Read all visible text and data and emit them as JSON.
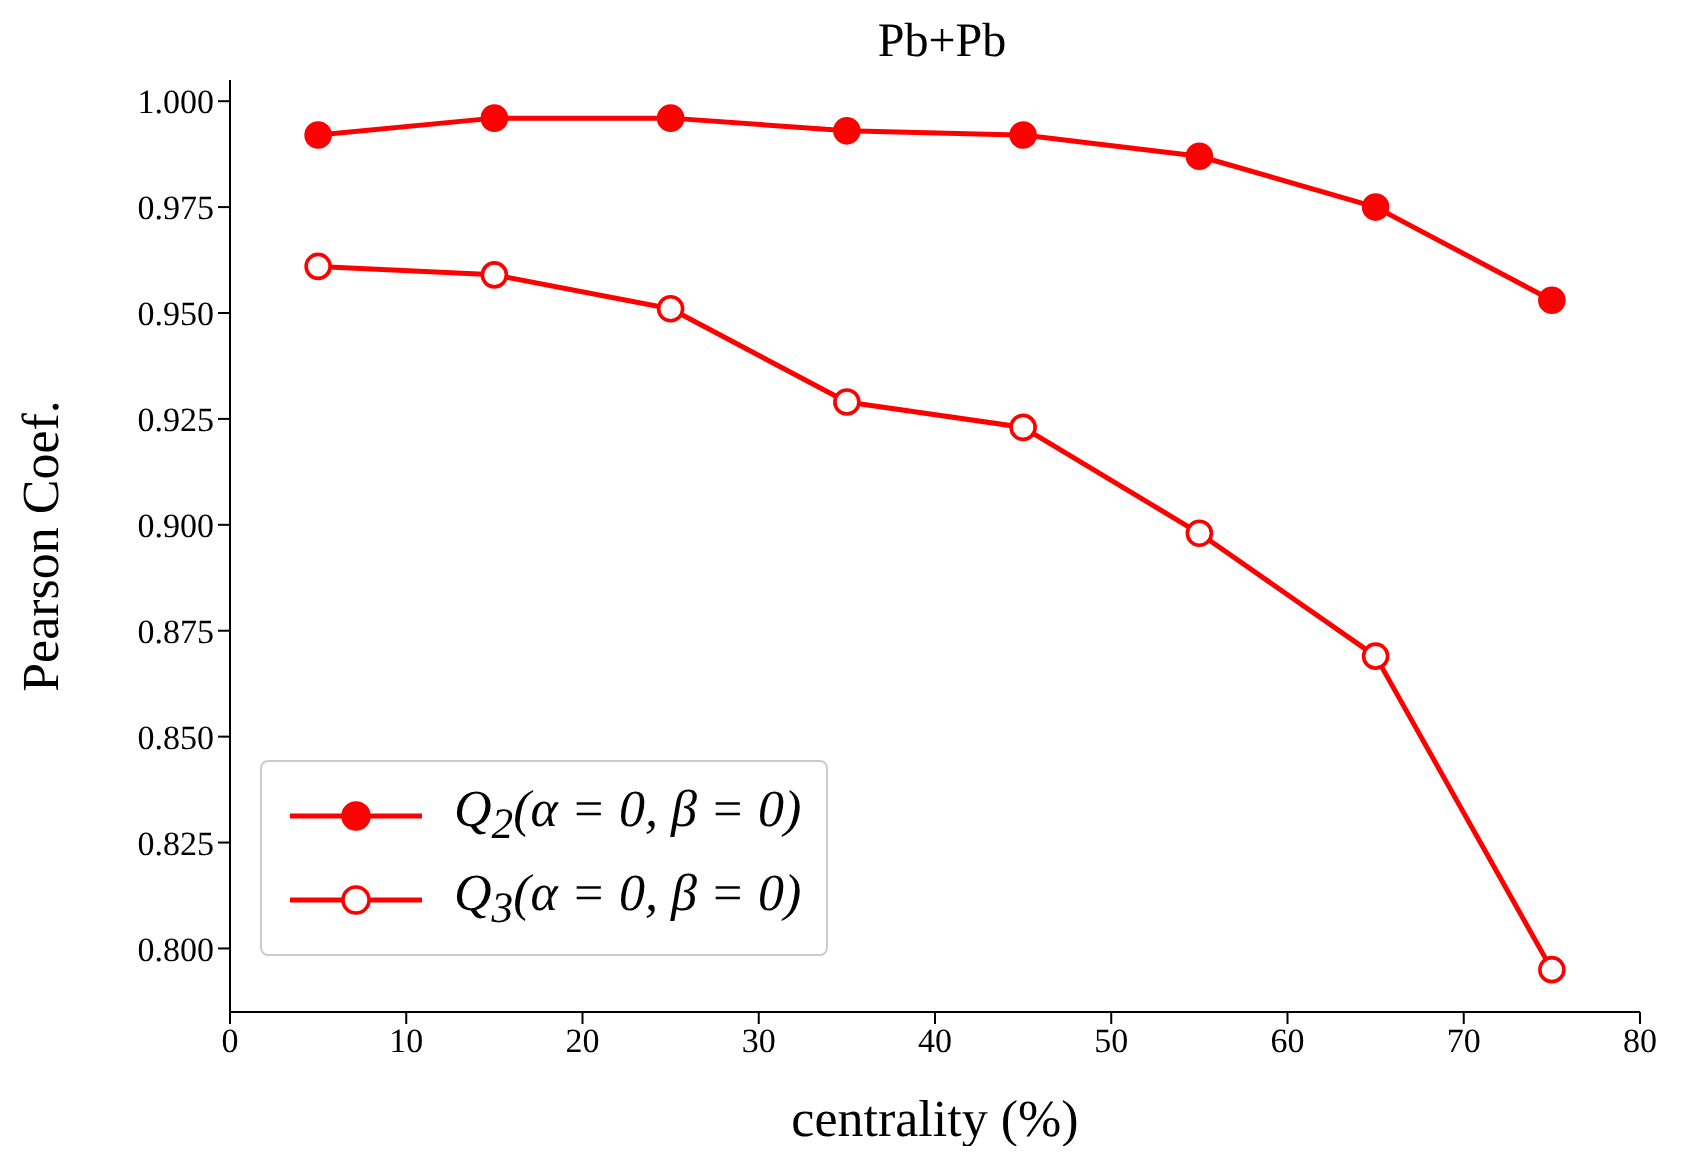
{
  "chart_data": {
    "type": "line",
    "title": "Pb+Pb",
    "xlabel": "centrality (%)",
    "ylabel": "Pearson Coef.",
    "x": [
      5,
      15,
      25,
      35,
      45,
      55,
      65,
      75
    ],
    "series": [
      {
        "name": "Q$_{2}$(α = 0, β = 0)",
        "color": "#ff0000",
        "values": [
          0.992,
          0.996,
          0.996,
          0.993,
          0.992,
          0.987,
          0.975,
          0.953
        ]
      },
      {
        "name": "Q$_{3}$(α = 0, β = 0)",
        "color": "#ff0000",
        "values": [
          0.961,
          0.959,
          0.951,
          0.929,
          0.923,
          0.898,
          0.869,
          0.795
        ]
      }
    ],
    "xlim": [
      0,
      80
    ],
    "xticks": [
      0,
      10,
      20,
      30,
      40,
      50,
      60,
      70,
      80
    ],
    "ylim": [
      0.785,
      1.005
    ],
    "yticks": [
      {
        "value": 0.8,
        "label": "0.800"
      },
      {
        "value": 0.825,
        "label": "0.825"
      },
      {
        "value": 0.85,
        "label": "0.850"
      },
      {
        "value": 0.875,
        "label": "0.875"
      },
      {
        "value": 0.9,
        "label": "0.900"
      },
      {
        "value": 0.925,
        "label": "0.925"
      },
      {
        "value": 0.95,
        "label": "0.950"
      },
      {
        "value": 0.975,
        "label": "0.975"
      },
      {
        "value": 1.0,
        "label": "1.000"
      }
    ],
    "grid": false,
    "legend": "bottom left",
    "marker": "circle",
    "line_style": "solid"
  }
}
